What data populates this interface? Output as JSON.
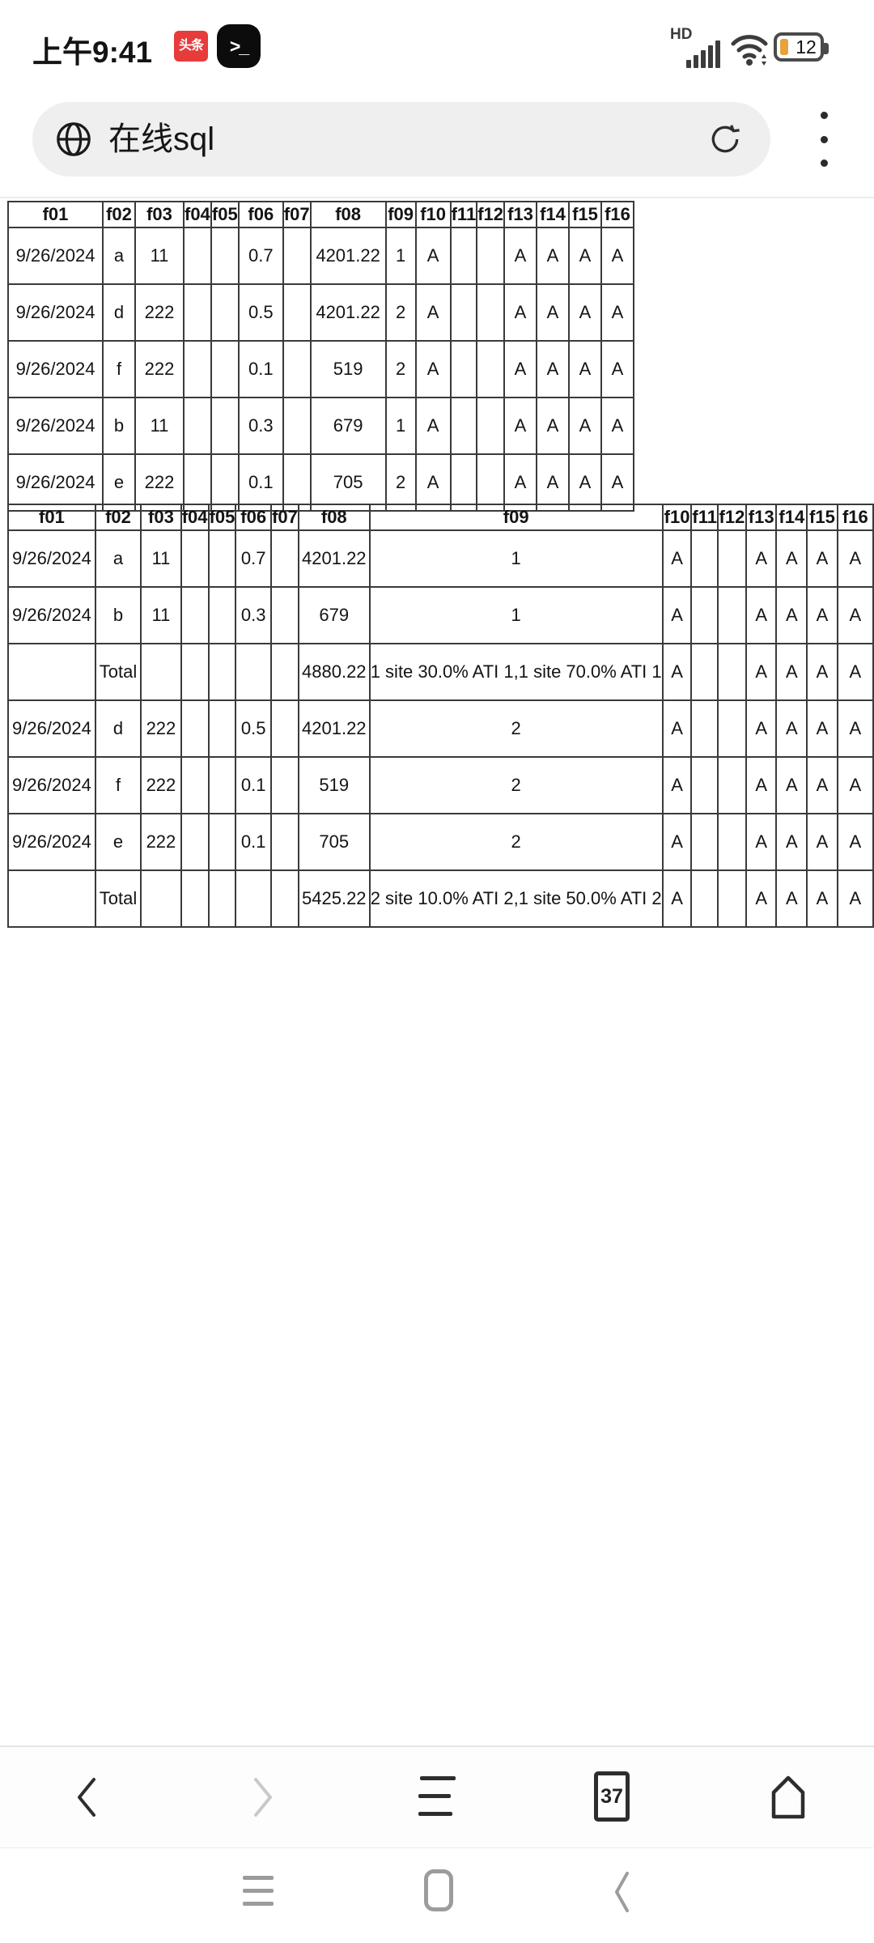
{
  "status_bar": {
    "time": "上午9:41",
    "toutiao_badge": "头条",
    "terminal_glyph": ">_",
    "hd_label": "HD",
    "battery_level": "12"
  },
  "address_bar": {
    "query": "在线sql"
  },
  "results": {
    "table1": {
      "headers": [
        "f01",
        "f02",
        "f03",
        "f04",
        "f05",
        "f06",
        "f07",
        "f08",
        "f09",
        "f10",
        "f11",
        "f12",
        "f13",
        "f14",
        "f15",
        "f16"
      ],
      "rows": [
        [
          "9/26/2024",
          "a",
          "11",
          "",
          "",
          "0.7",
          "",
          "4201.22",
          "1",
          "A",
          "",
          "",
          "A",
          "A",
          "A",
          "A"
        ],
        [
          "9/26/2024",
          "d",
          "222",
          "",
          "",
          "0.5",
          "",
          "4201.22",
          "2",
          "A",
          "",
          "",
          "A",
          "A",
          "A",
          "A"
        ],
        [
          "9/26/2024",
          "f",
          "222",
          "",
          "",
          "0.1",
          "",
          "519",
          "2",
          "A",
          "",
          "",
          "A",
          "A",
          "A",
          "A"
        ],
        [
          "9/26/2024",
          "b",
          "11",
          "",
          "",
          "0.3",
          "",
          "679",
          "1",
          "A",
          "",
          "",
          "A",
          "A",
          "A",
          "A"
        ],
        [
          "9/26/2024",
          "e",
          "222",
          "",
          "",
          "0.1",
          "",
          "705",
          "2",
          "A",
          "",
          "",
          "A",
          "A",
          "A",
          "A"
        ]
      ]
    },
    "table2": {
      "headers": [
        "f01",
        "f02",
        "f03",
        "f04",
        "f05",
        "f06",
        "f07",
        "f08",
        "f09",
        "f10",
        "f11",
        "f12",
        "f13",
        "f14",
        "f15",
        "f16"
      ],
      "rows": [
        [
          "9/26/2024",
          "a",
          "11",
          "",
          "",
          "0.7",
          "",
          "4201.22",
          "1",
          "A",
          "",
          "",
          "A",
          "A",
          "A",
          "A"
        ],
        [
          "9/26/2024",
          "b",
          "11",
          "",
          "",
          "0.3",
          "",
          "679",
          "1",
          "A",
          "",
          "",
          "A",
          "A",
          "A",
          "A"
        ],
        [
          "",
          "Total",
          "",
          "",
          "",
          "",
          "",
          "4880.22",
          "1 site 30.0% ATI 1,1 site 70.0% ATI 1",
          "A",
          "",
          "",
          "A",
          "A",
          "A",
          "A"
        ],
        [
          "9/26/2024",
          "d",
          "222",
          "",
          "",
          "0.5",
          "",
          "4201.22",
          "2",
          "A",
          "",
          "",
          "A",
          "A",
          "A",
          "A"
        ],
        [
          "9/26/2024",
          "f",
          "222",
          "",
          "",
          "0.1",
          "",
          "519",
          "2",
          "A",
          "",
          "",
          "A",
          "A",
          "A",
          "A"
        ],
        [
          "9/26/2024",
          "e",
          "222",
          "",
          "",
          "0.1",
          "",
          "705",
          "2",
          "A",
          "",
          "",
          "A",
          "A",
          "A",
          "A"
        ],
        [
          "",
          "Total",
          "",
          "",
          "",
          "",
          "",
          "5425.22",
          "2 site 10.0% ATI 2,1 site 50.0% ATI 2",
          "A",
          "",
          "",
          "A",
          "A",
          "A",
          "A"
        ]
      ]
    }
  },
  "browser_toolbar": {
    "tab_count": "37"
  },
  "colors": {
    "badge_red": "#e73b3c",
    "battery_orange": "#e8a23c",
    "icon_dark": "#2d2d2d",
    "icon_disabled": "#c9c9c9",
    "nav_gray": "#9c9c9c",
    "table_border": "#3a3a3a"
  }
}
